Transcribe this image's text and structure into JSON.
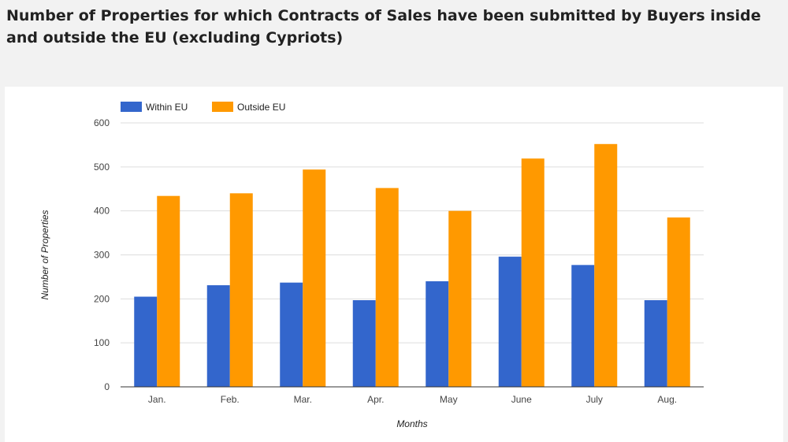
{
  "title": "Number of Properties for which Contracts of Sales have been submitted by Buyers inside and outside the EU (excluding Cypriots)",
  "chart_data": {
    "type": "bar",
    "categories": [
      "Jan.",
      "Feb.",
      "Mar.",
      "Apr.",
      "May",
      "June",
      "July",
      "Aug."
    ],
    "series": [
      {
        "name": "Within EU",
        "color": "#3366cc",
        "values": [
          205,
          231,
          237,
          197,
          240,
          296,
          277,
          197
        ]
      },
      {
        "name": "Outside EU",
        "color": "#ff9900",
        "values": [
          434,
          440,
          494,
          452,
          400,
          519,
          552,
          385
        ]
      }
    ],
    "xlabel": "Months",
    "ylabel": "Number of Properties",
    "ylim": [
      0,
      600
    ],
    "yticks": [
      0,
      100,
      200,
      300,
      400,
      500,
      600
    ],
    "grid": true,
    "legend_position": "top-left"
  }
}
